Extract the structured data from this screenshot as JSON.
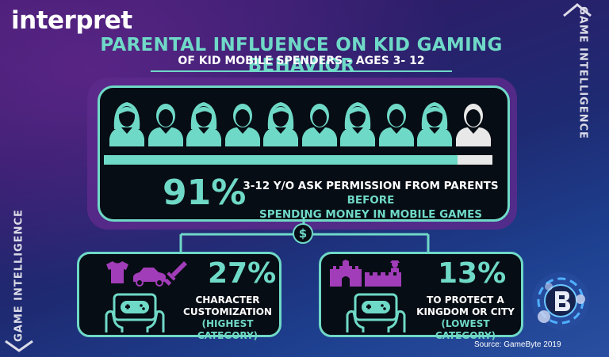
{
  "logo_text": "interpret",
  "title": "PARENTAL INFLUENCE ON KID GAMING BEHAVIOR",
  "subtitle": "OF KID MOBILE SPENDERS – AGES 3- 12",
  "side_label_right": "GAME INTELLIGENCE",
  "side_label_left": "GAME INTELLIGENCE",
  "main": {
    "percent": "91%",
    "text_white": "3-12 Y/O ASK PERMISSION FROM PARENTS ",
    "text_highlight": "BEFORE",
    "text_line2": "SPENDING MONEY IN MOBILE GAMES",
    "avatar_count": 10,
    "highlighted_avatars": 9,
    "bar_fraction": 0.91
  },
  "left_card": {
    "percent": "27%",
    "line1": "CHARACTER",
    "line2": "CUSTOMIZATION",
    "note": "(HIGHEST CATEGORY)",
    "icons": [
      "shirt-icon",
      "car-icon",
      "sword-icon",
      "gamepad-hands-icon"
    ]
  },
  "right_card": {
    "percent": "13%",
    "line1": "TO PROTECT A",
    "line2": "KINGDOM OR CITY",
    "note": "(LOWEST CATEGORY)",
    "icons": [
      "castle-icon",
      "wall-icon",
      "soldier-icon",
      "gamepad-hands-icon"
    ]
  },
  "dollar_symbol": "$",
  "source": "Source: GameByte 2019",
  "colors": {
    "accent": "#6fd9c7",
    "purple_icon": "#a13db8",
    "card_bg": "#070d14",
    "halo": "#5c2a8c",
    "avatar_off": "#e8e8e8"
  }
}
